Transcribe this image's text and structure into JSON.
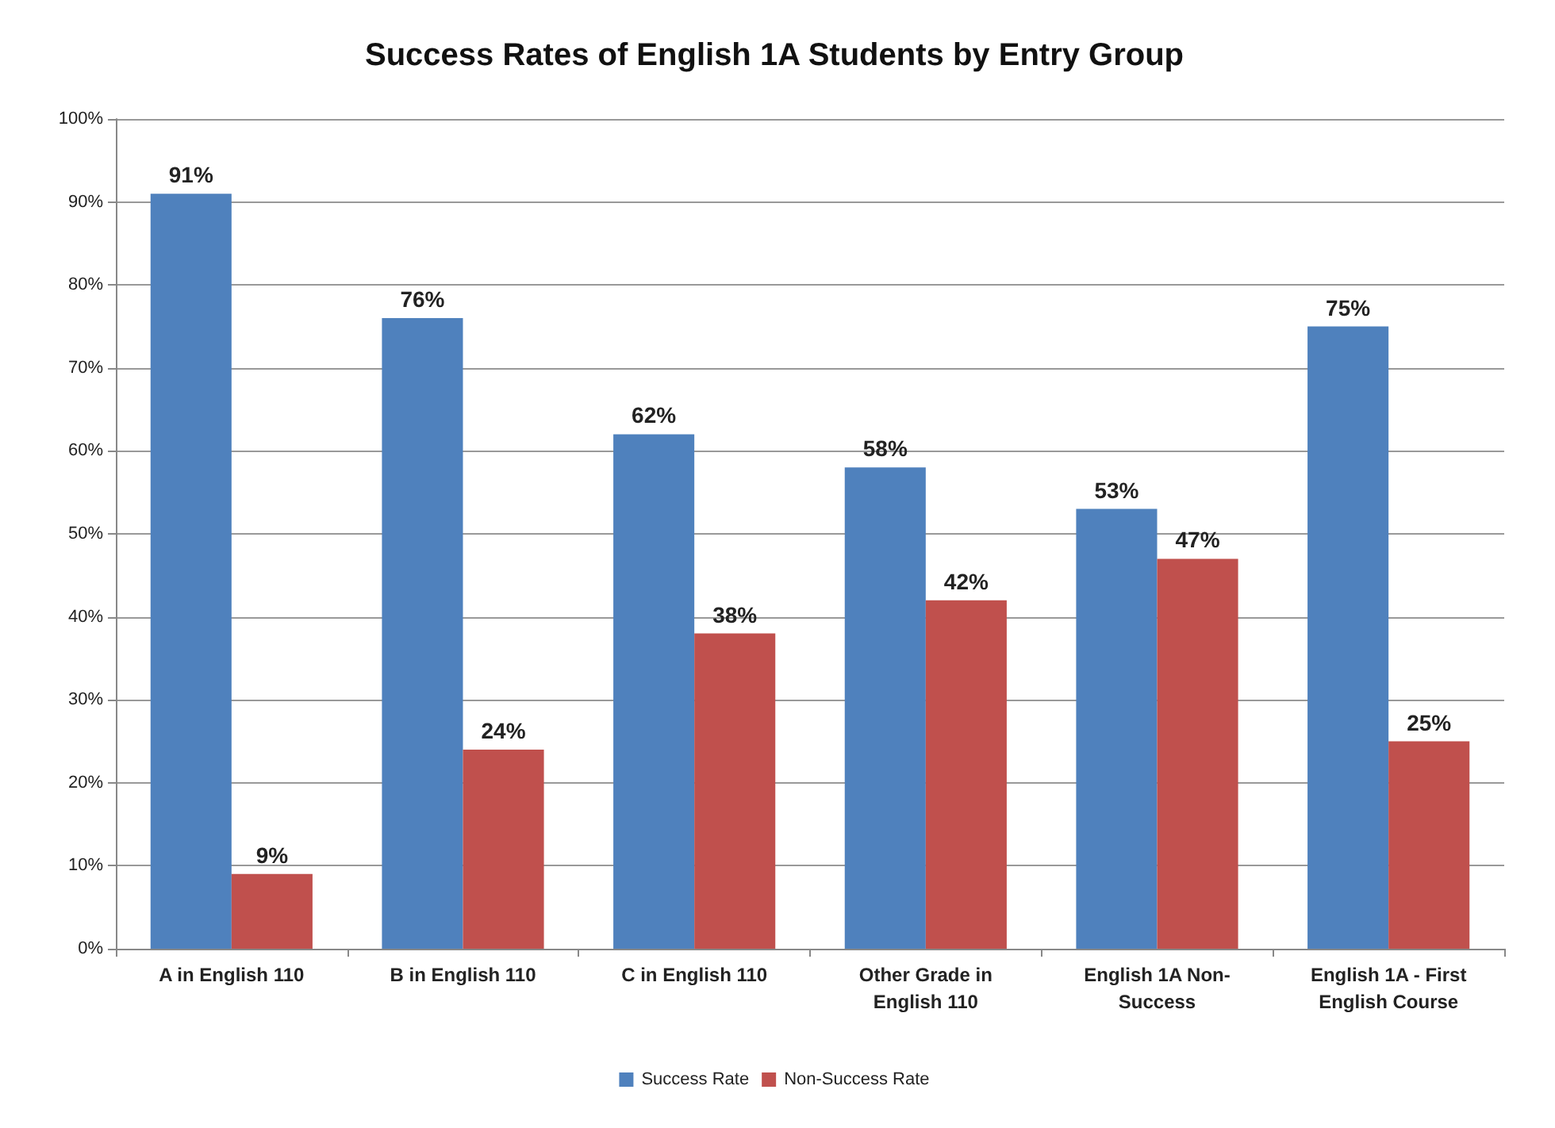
{
  "chart_data": {
    "type": "bar",
    "title": "Success Rates of English 1A Students by Entry Group",
    "categories": [
      "A in English 110",
      "B in English 110",
      "C in English 110",
      "Other Grade in\nEnglish 110",
      "English 1A Non-\nSuccess",
      "English 1A - First\nEnglish Course"
    ],
    "series": [
      {
        "name": "Success Rate",
        "color": "#4f81bd",
        "values": [
          91,
          76,
          62,
          58,
          53,
          75
        ],
        "value_labels": [
          "91%",
          "76%",
          "62%",
          "58%",
          "53%",
          "75%"
        ]
      },
      {
        "name": "Non-Success Rate",
        "color": "#c0504d",
        "values": [
          9,
          24,
          38,
          42,
          47,
          25
        ],
        "value_labels": [
          "9%",
          "24%",
          "38%",
          "42%",
          "47%",
          "25%"
        ]
      }
    ],
    "ylim": [
      0,
      100
    ],
    "yticks": [
      {
        "value": 0,
        "label": "0%"
      },
      {
        "value": 10,
        "label": "10%"
      },
      {
        "value": 20,
        "label": "20%"
      },
      {
        "value": 30,
        "label": "30%"
      },
      {
        "value": 40,
        "label": "40%"
      },
      {
        "value": 50,
        "label": "50%"
      },
      {
        "value": 60,
        "label": "60%"
      },
      {
        "value": 70,
        "label": "70%"
      },
      {
        "value": 80,
        "label": "80%"
      },
      {
        "value": 90,
        "label": "90%"
      },
      {
        "value": 100,
        "label": "100%"
      }
    ],
    "grid": "y",
    "legend": "bottom"
  }
}
